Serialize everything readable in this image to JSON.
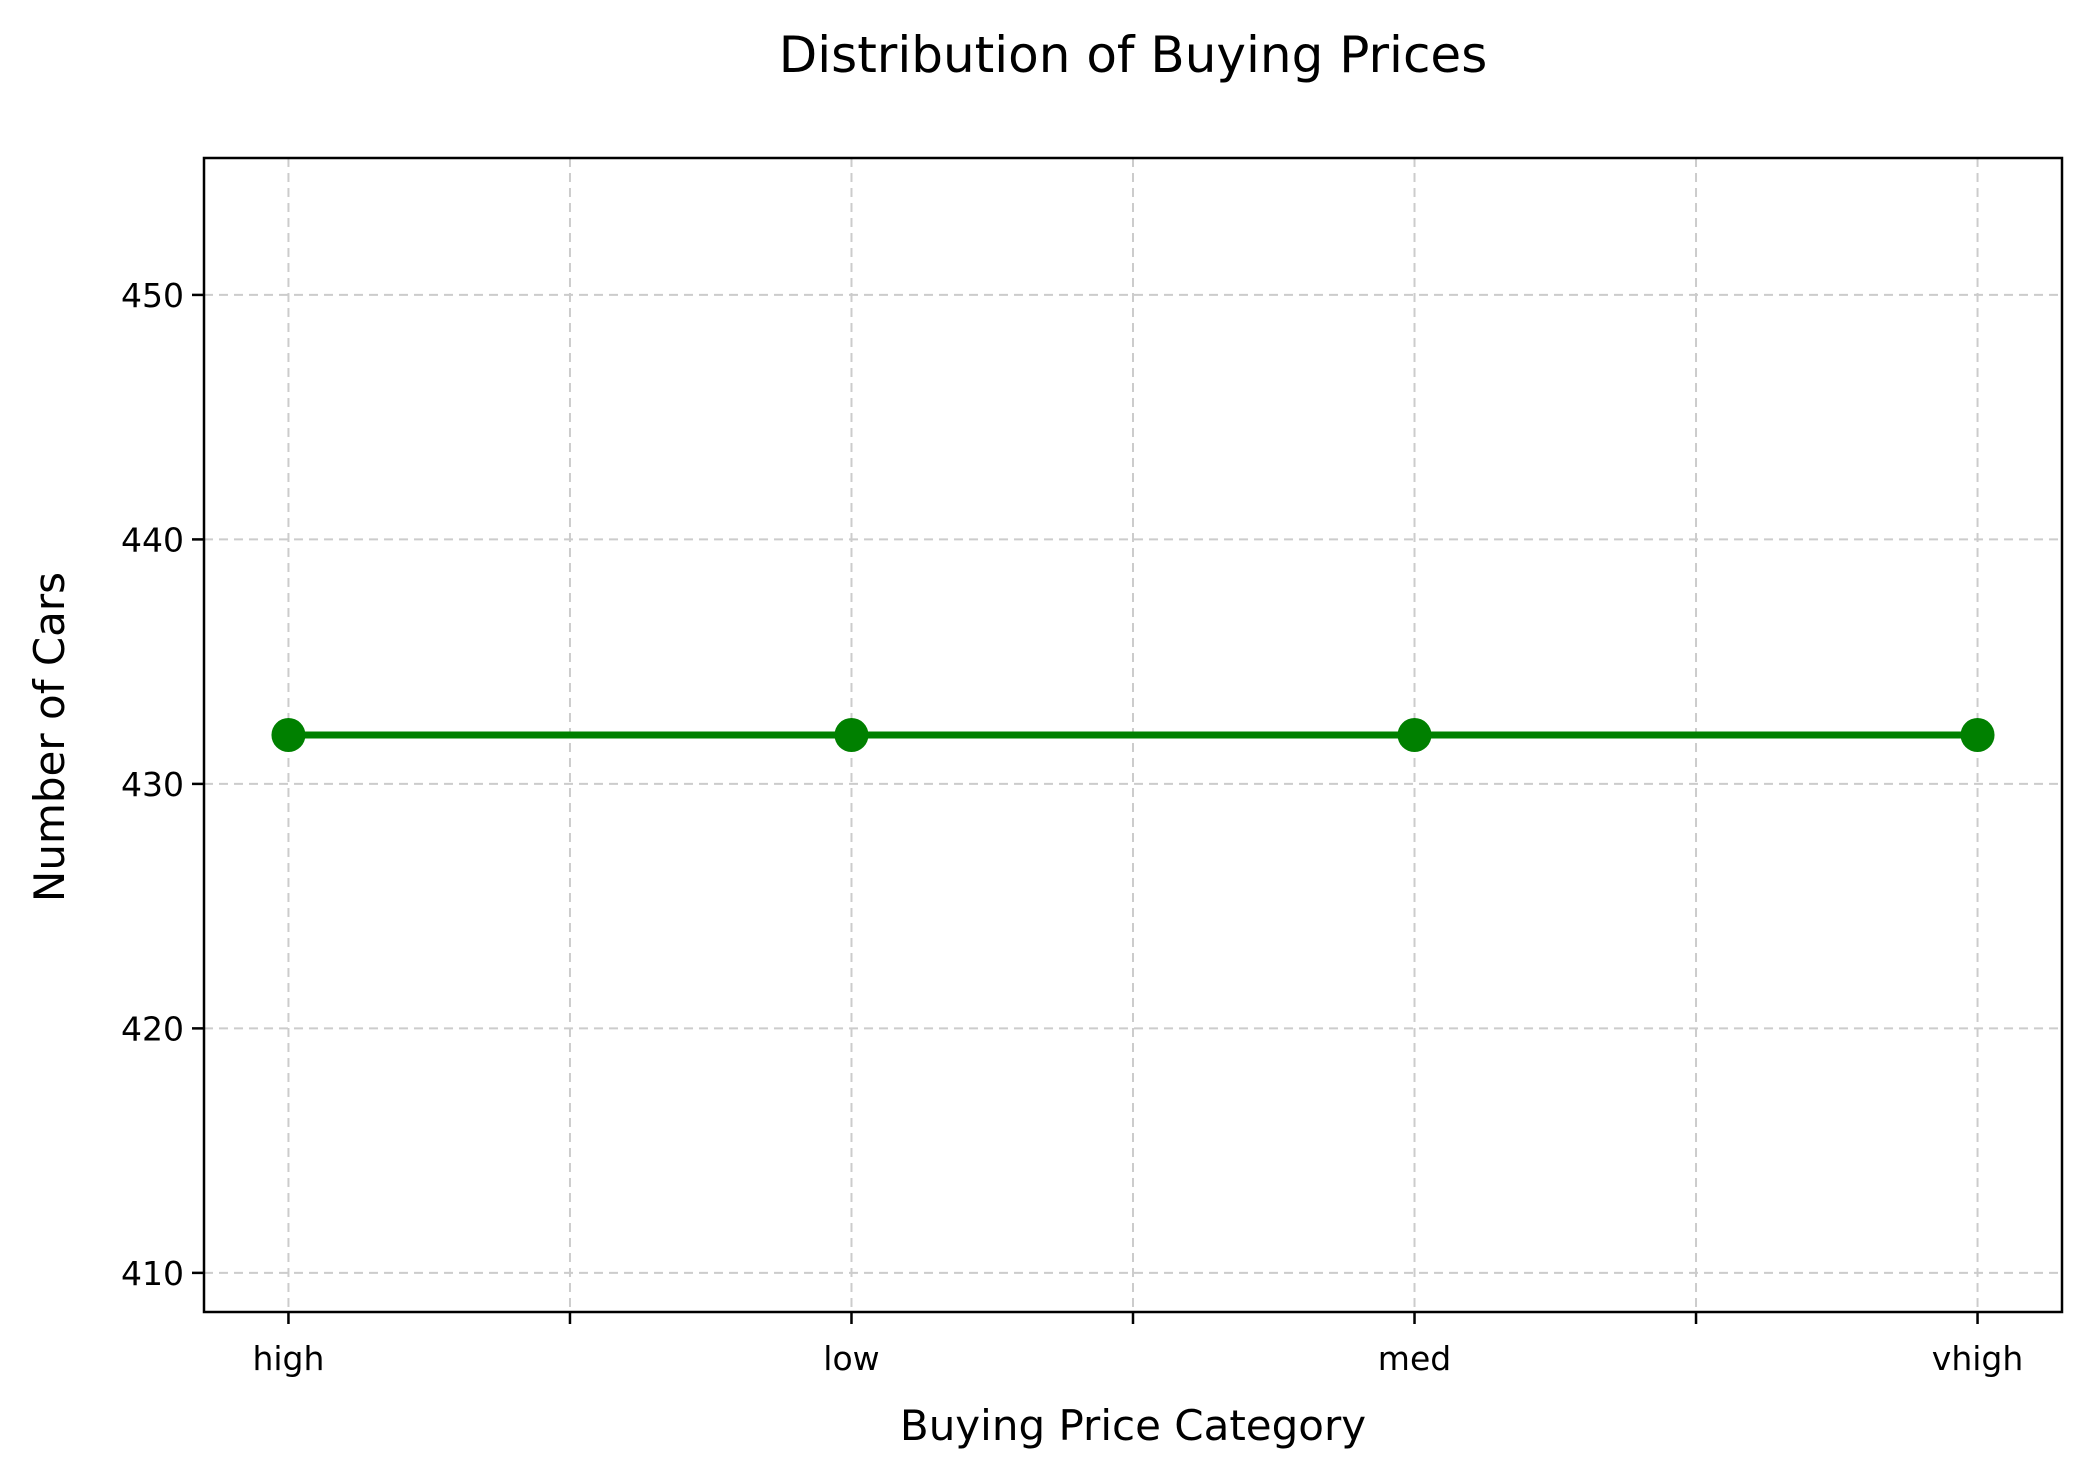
{
  "chart_data": {
    "type": "line",
    "title": "Distribution of Buying Prices",
    "xlabel": "Buying Price Category",
    "ylabel": "Number of Cars",
    "categories": [
      "high",
      "low",
      "med",
      "vhigh"
    ],
    "series": [
      {
        "values": [
          432,
          432,
          432,
          432
        ],
        "color": "#008000",
        "marker": "circle"
      }
    ],
    "ylim": [
      408.4,
      455.6
    ],
    "yticks": [
      410,
      420,
      430,
      440,
      450
    ],
    "x_minor_ticks": [
      0.5,
      1.5,
      2.5
    ],
    "grid": true,
    "grid_style": "dashed",
    "grid_color": "#cccccc"
  }
}
